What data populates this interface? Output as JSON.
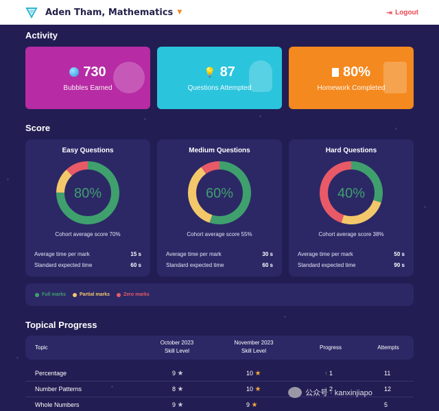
{
  "header": {
    "title": "Aden Tham, Mathematics",
    "logout_label": "Logout"
  },
  "colors": {
    "purple": "#b72ba4",
    "cyan": "#2bc4dd",
    "orange": "#f4891f",
    "full": "#3fa06e",
    "partial": "#f3c86a",
    "zero": "#e85a67",
    "panel": "#2c2866",
    "background": "#221d52"
  },
  "activity": {
    "title": "Activity",
    "cards": [
      {
        "value": "730",
        "label": "Bubbles Earned",
        "icon": "bubble-icon"
      },
      {
        "value": "87",
        "label": "Questions Attempted",
        "icon": "lightbulb-icon"
      },
      {
        "value": "80%",
        "label": "Homework Completed",
        "icon": "document-icon"
      }
    ]
  },
  "score": {
    "title": "Score",
    "panels": [
      {
        "title": "Easy Questions",
        "percent": "80%",
        "cohort": "Cohort average score 70%",
        "avg_label": "Average time per mark",
        "avg_value": "15 s",
        "std_label": "Standard expected time",
        "std_value": "60 s",
        "breakdown": {
          "full": 0.75,
          "partial": 0.13,
          "zero": 0.12
        }
      },
      {
        "title": "Medium Questions",
        "percent": "60%",
        "cohort": "Cohort average score 55%",
        "avg_label": "Average time per mark",
        "avg_value": "30 s",
        "std_label": "Standard expected time",
        "std_value": "60 s",
        "breakdown": {
          "full": 0.55,
          "partial": 0.35,
          "zero": 0.1
        }
      },
      {
        "title": "Hard Questions",
        "percent": "40%",
        "cohort": "Cohort average score 38%",
        "avg_label": "Average time per mark",
        "avg_value": "50 s",
        "std_label": "Standard expected time",
        "std_value": "90 s",
        "breakdown": {
          "full": 0.3,
          "partial": 0.25,
          "zero": 0.45
        }
      }
    ],
    "legend": [
      "Full marks",
      "Partial marks",
      "Zero marks"
    ]
  },
  "topical": {
    "title": "Topical Progress",
    "headers": {
      "topic": "Topic",
      "oct_line1": "October 2023",
      "oct_line2": "Skill Level",
      "nov_line1": "November 2023",
      "nov_line2": "Skill Level",
      "progress": "Progress",
      "attempts": "Attempts"
    },
    "rows": [
      {
        "topic": "Percentage",
        "oct": "9",
        "nov": "10",
        "progress": "1",
        "attempts": "11"
      },
      {
        "topic": "Number Patterns",
        "oct": "8",
        "nov": "10",
        "progress": "2",
        "attempts": "12"
      },
      {
        "topic": "Whole Numbers",
        "oct": "9",
        "nov": "9",
        "progress": "",
        "attempts": "5"
      }
    ]
  },
  "watermark": {
    "text": "公众号 · kanxinjiapo"
  }
}
